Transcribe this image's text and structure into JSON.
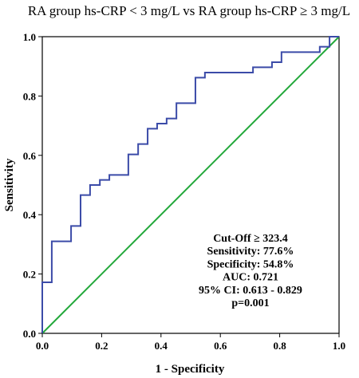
{
  "chart_data": {
    "type": "line",
    "title": "RA group hs-CRP < 3 mg/L vs RA group hs-CRP ≥ 3 mg/L",
    "xlabel": "1 - Specificity",
    "ylabel": "Sensitivity",
    "xlim": [
      0.0,
      1.0
    ],
    "ylim": [
      0.0,
      1.0
    ],
    "xticks": [
      "0.0",
      "0.2",
      "0.4",
      "0.6",
      "0.8",
      "1.0"
    ],
    "yticks": [
      "0.0",
      "0.2",
      "0.4",
      "0.6",
      "0.8",
      "1.0"
    ],
    "grid": false,
    "colors": {
      "roc": "#3b4ba8",
      "reference": "#22a83a"
    },
    "series": [
      {
        "values_xy": [
          [
            0.0,
            0.0
          ],
          [
            0.0,
            0.172
          ],
          [
            0.032,
            0.172
          ],
          [
            0.032,
            0.31
          ],
          [
            0.097,
            0.31
          ],
          [
            0.097,
            0.362
          ],
          [
            0.129,
            0.362
          ],
          [
            0.129,
            0.466
          ],
          [
            0.161,
            0.466
          ],
          [
            0.161,
            0.5
          ],
          [
            0.194,
            0.5
          ],
          [
            0.194,
            0.517
          ],
          [
            0.226,
            0.517
          ],
          [
            0.226,
            0.534
          ],
          [
            0.29,
            0.534
          ],
          [
            0.29,
            0.603
          ],
          [
            0.323,
            0.603
          ],
          [
            0.323,
            0.638
          ],
          [
            0.355,
            0.638
          ],
          [
            0.355,
            0.69
          ],
          [
            0.387,
            0.69
          ],
          [
            0.387,
            0.707
          ],
          [
            0.419,
            0.707
          ],
          [
            0.419,
            0.724
          ],
          [
            0.452,
            0.724
          ],
          [
            0.452,
            0.776
          ],
          [
            0.516,
            0.776
          ],
          [
            0.516,
            0.862
          ],
          [
            0.548,
            0.862
          ],
          [
            0.548,
            0.879
          ],
          [
            0.71,
            0.879
          ],
          [
            0.71,
            0.897
          ],
          [
            0.774,
            0.897
          ],
          [
            0.774,
            0.914
          ],
          [
            0.806,
            0.914
          ],
          [
            0.806,
            0.948
          ],
          [
            0.935,
            0.948
          ],
          [
            0.935,
            0.966
          ],
          [
            0.968,
            0.966
          ],
          [
            0.968,
            1.0
          ],
          [
            1.0,
            1.0
          ]
        ]
      },
      {
        "values_xy": [
          [
            0.0,
            0.0
          ],
          [
            1.0,
            1.0
          ]
        ]
      }
    ],
    "annotations": [
      "Cut-Off ≥ 323.4",
      "Sensitivity: 77.6%",
      "Specificity: 54.8%",
      "AUC: 0.721",
      "95% CI: 0.613 - 0.829",
      "p=0.001"
    ]
  }
}
